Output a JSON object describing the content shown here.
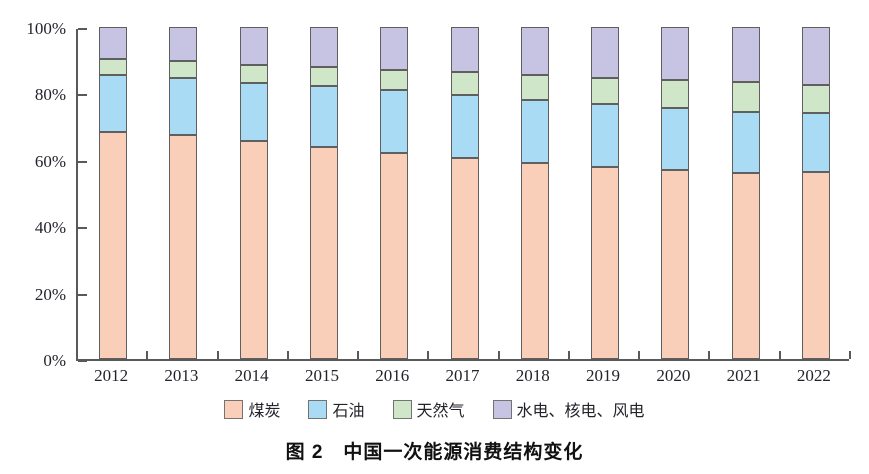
{
  "figure": {
    "caption": "图 2　中国一次能源消费结构变化"
  },
  "chart_data": {
    "type": "bar",
    "stacked": true,
    "orientation": "vertical",
    "title": "图 2 中国一次能源消费结构变化",
    "categories": [
      "2012",
      "2013",
      "2014",
      "2015",
      "2016",
      "2017",
      "2018",
      "2019",
      "2020",
      "2021",
      "2022"
    ],
    "series": [
      {
        "name": "煤炭",
        "color": "#f9cfba",
        "values": [
          68.5,
          67.4,
          65.8,
          63.8,
          62.2,
          60.6,
          59.0,
          57.7,
          56.8,
          56.0,
          56.2
        ]
      },
      {
        "name": "石油",
        "color": "#a9dbf4",
        "values": [
          17.0,
          17.1,
          17.3,
          18.4,
          18.7,
          18.9,
          18.9,
          19.0,
          18.9,
          18.5,
          17.9
        ]
      },
      {
        "name": "天然气",
        "color": "#cfe6c9",
        "values": [
          4.8,
          5.3,
          5.6,
          5.8,
          6.1,
          6.9,
          7.6,
          8.0,
          8.4,
          8.9,
          8.4
        ]
      },
      {
        "name": "水电、核电、风电",
        "color": "#c7c4e3",
        "values": [
          9.7,
          10.2,
          11.3,
          12.0,
          13.0,
          13.6,
          14.5,
          15.3,
          15.9,
          16.6,
          17.5
        ]
      }
    ],
    "xlabel": "",
    "ylabel": "",
    "ylim": [
      0,
      100
    ],
    "yticks": [
      {
        "value": 0,
        "label": "0%"
      },
      {
        "value": 20,
        "label": "20%"
      },
      {
        "value": 40,
        "label": "40%"
      },
      {
        "value": 60,
        "label": "60%"
      },
      {
        "value": 80,
        "label": "80%"
      },
      {
        "value": 100,
        "label": "100%"
      }
    ],
    "grid": false,
    "legend_position": "bottom",
    "axis_color": "#595959",
    "bar_border_color": "#5f5f5f",
    "unit": "percent"
  }
}
